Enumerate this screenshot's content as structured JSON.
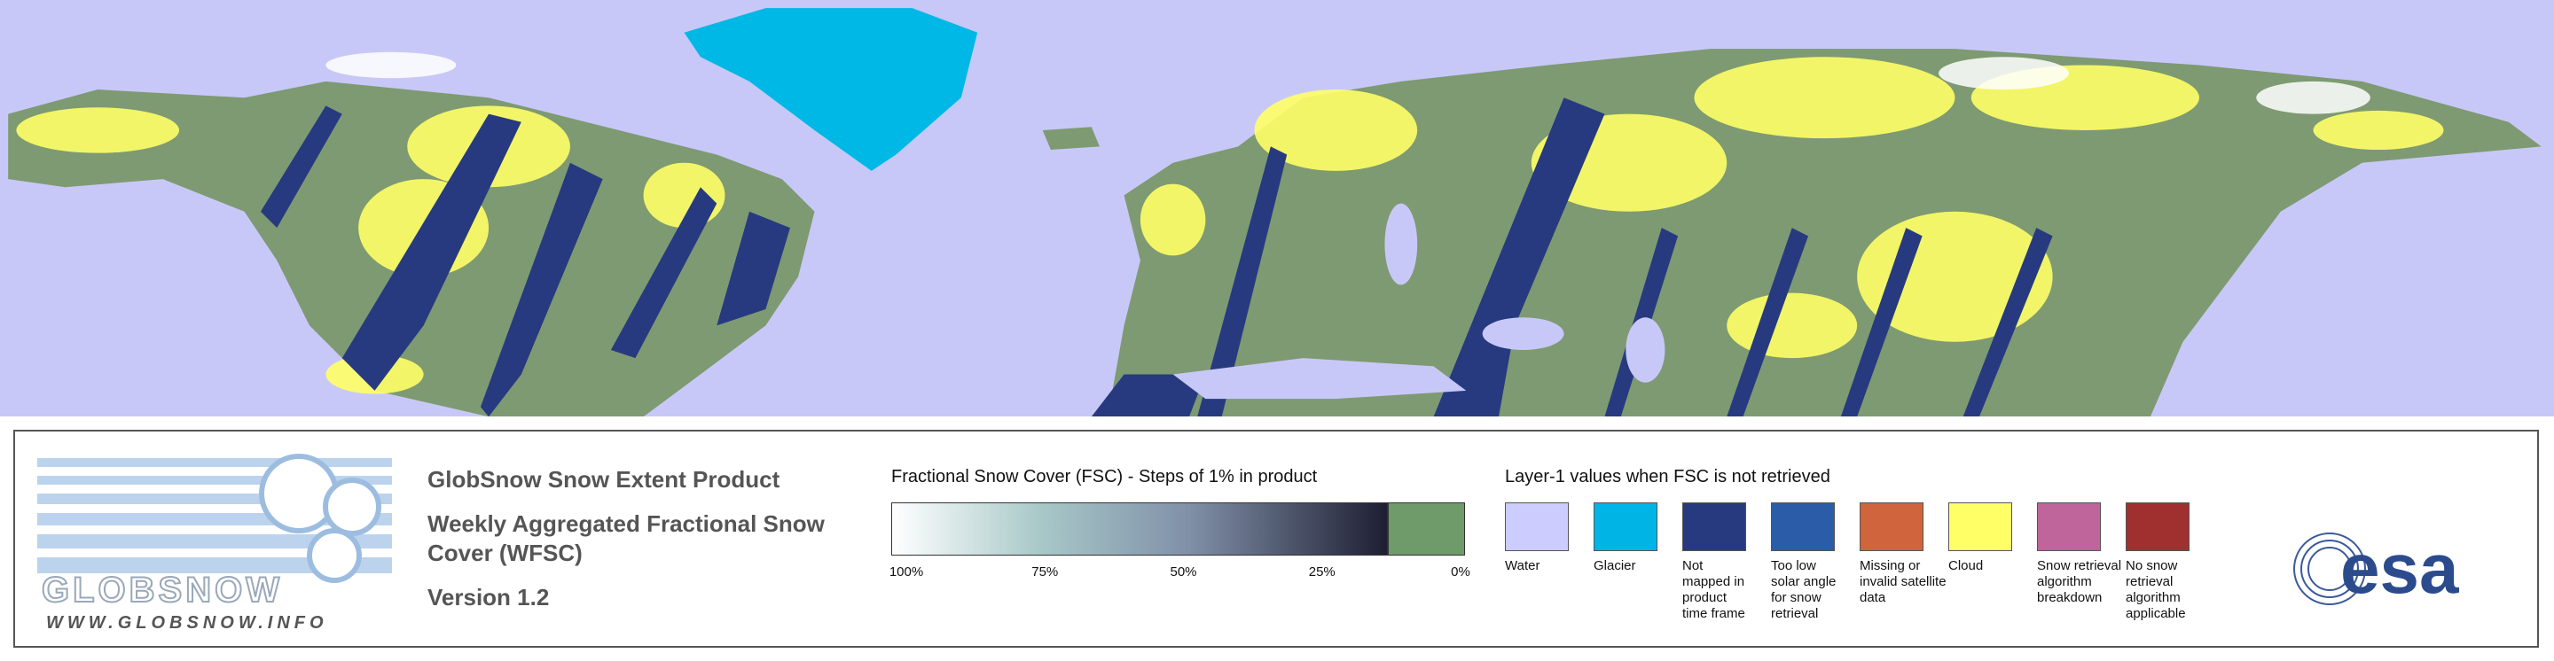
{
  "logo": {
    "name": "GLOBSNOW",
    "url": "WWW.GLOBSNOW.INFO"
  },
  "product": {
    "title": "GlobSnow Snow Extent Product",
    "subtitle_lines": [
      "Weekly Aggregated Fractional Snow",
      "Cover (WFSC)"
    ],
    "version": "Version 1.2"
  },
  "colorbar": {
    "title": "Fractional Snow Cover (FSC) - Steps of 1% in product",
    "labels": [
      "100%",
      "75%",
      "50%",
      "25%",
      "0%"
    ]
  },
  "layer1": {
    "title": "Layer-1 values when FSC is not retrieved",
    "items": [
      {
        "label": [
          "Water"
        ],
        "color": "#ccccff"
      },
      {
        "label": [
          "Glacier"
        ],
        "color": "#00b4e6"
      },
      {
        "label": [
          "Not",
          "mapped in",
          "product",
          "time frame"
        ],
        "color": "#273a80"
      },
      {
        "label": [
          "Too low",
          "solar angle",
          "for snow",
          "retrieval"
        ],
        "color": "#2b5ca8"
      },
      {
        "label": [
          "Missing or",
          "invalid satellite",
          "data"
        ],
        "color": "#d0643c"
      },
      {
        "label": [
          "Cloud"
        ],
        "color": "#ffff66"
      },
      {
        "label": [
          "Snow retrieval",
          "algorithm",
          "breakdown"
        ],
        "color": "#c0649c"
      },
      {
        "label": [
          "No snow",
          "retrieval",
          "algorithm",
          "applicable"
        ],
        "color": "#a03030"
      }
    ]
  },
  "agency": {
    "name": "esa"
  }
}
